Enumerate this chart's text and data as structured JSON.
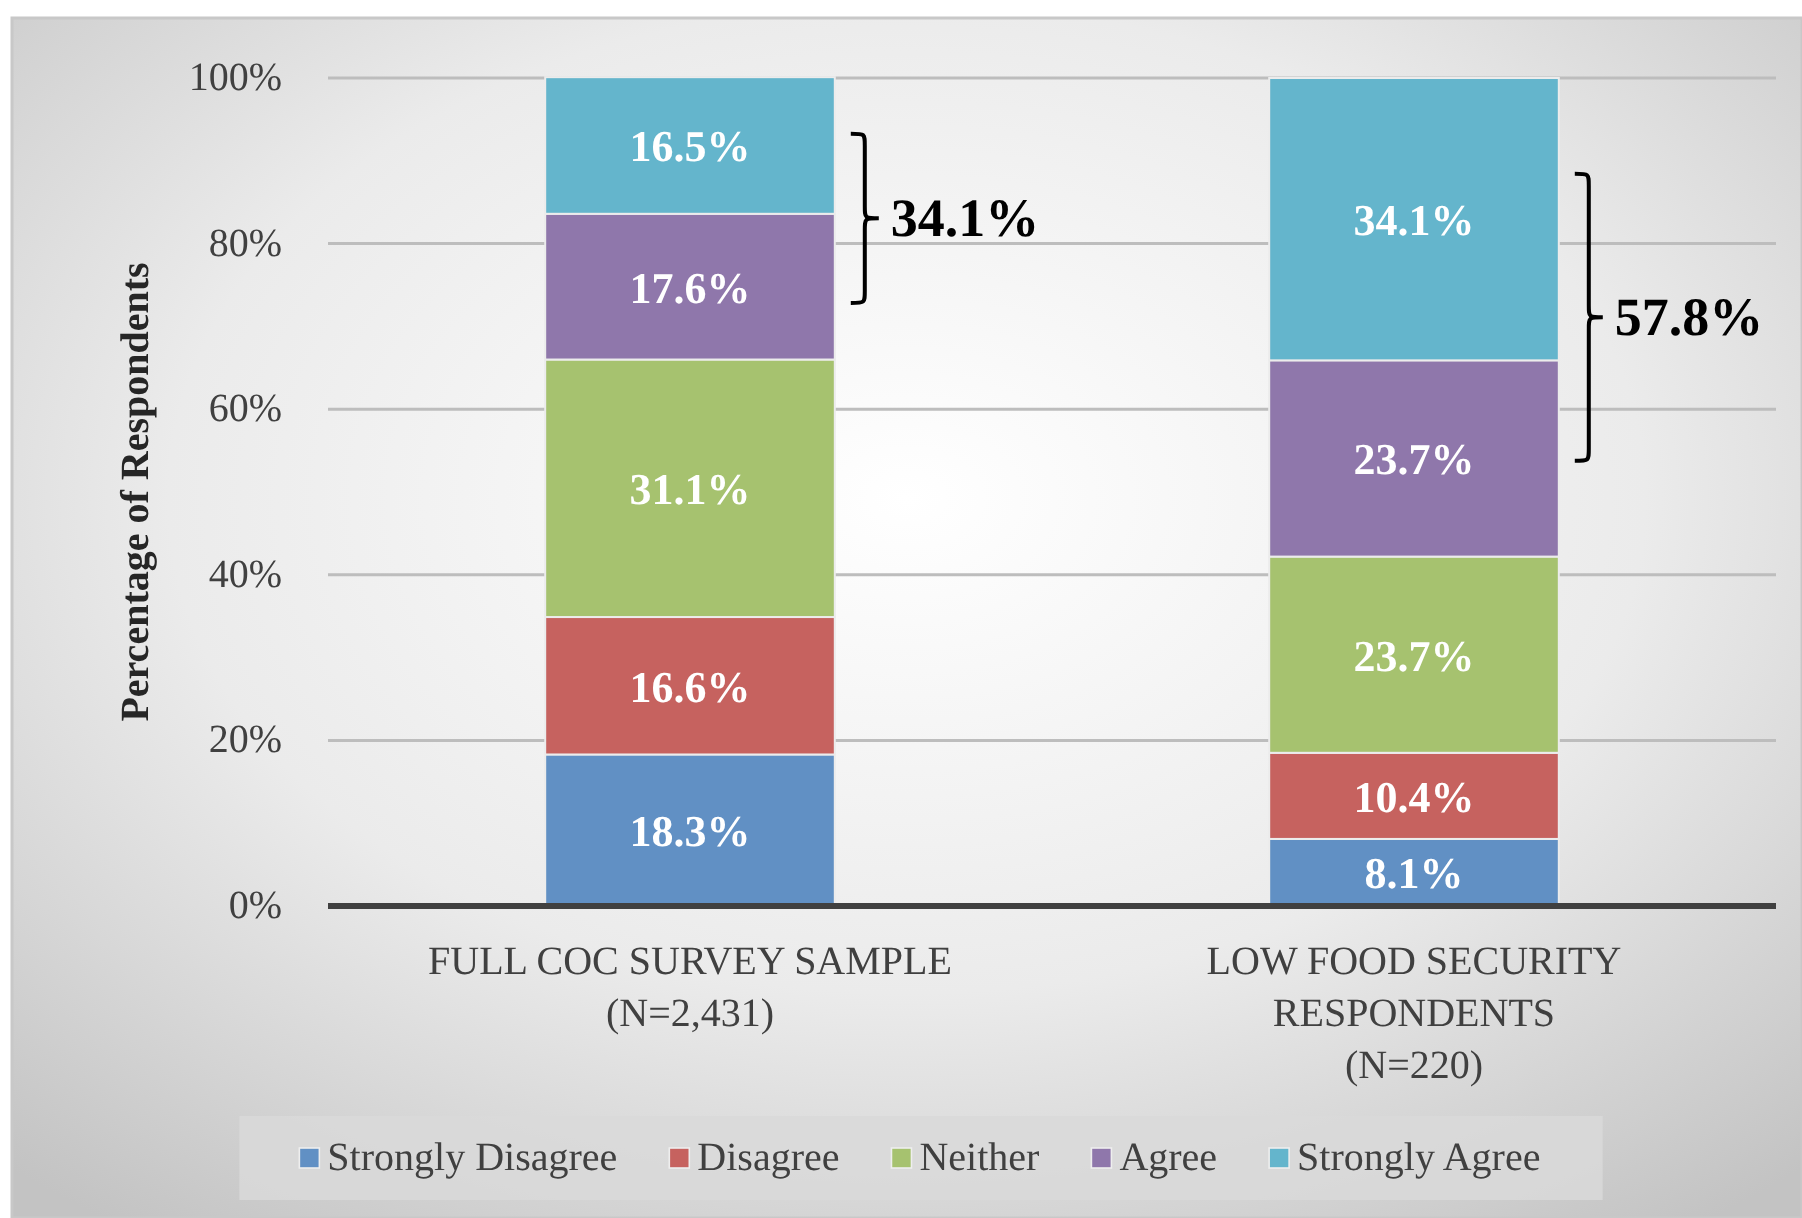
{
  "chart_data": {
    "type": "bar",
    "stacked": true,
    "categories": [
      "FULL COC SURVEY SAMPLE\n(N=2,431)",
      "LOW FOOD SECURITY\nRESPONDENTS\n(N=220)"
    ],
    "ylabel": "Percentage of Respondents",
    "ylim": [
      0,
      100
    ],
    "yticks": [
      {
        "value": 0,
        "label": "0%"
      },
      {
        "value": 20,
        "label": "20%"
      },
      {
        "value": 40,
        "label": "40%"
      },
      {
        "value": 60,
        "label": "60%"
      },
      {
        "value": 80,
        "label": "80%"
      },
      {
        "value": 100,
        "label": "100%"
      }
    ],
    "grid": "y",
    "legend": "bottom",
    "series": [
      {
        "name": "Strongly Disagree",
        "color": "#6190c4",
        "values": [
          18.3,
          8.1
        ],
        "value_labels": [
          "18.3%",
          "8.1%"
        ]
      },
      {
        "name": "Disagree",
        "color": "#c6625f",
        "values": [
          16.6,
          10.4
        ],
        "value_labels": [
          "16.6%",
          "10.4%"
        ]
      },
      {
        "name": "Neither",
        "color": "#a6c26f",
        "values": [
          31.1,
          23.7
        ],
        "value_labels": [
          "31.1%",
          "23.7%"
        ]
      },
      {
        "name": "Agree",
        "color": "#8f77ab",
        "values": [
          17.6,
          23.7
        ],
        "value_labels": [
          "17.6%",
          "23.7%"
        ]
      },
      {
        "name": "Strongly Agree",
        "color": "#64b5cc",
        "values": [
          16.5,
          34.1
        ],
        "value_labels": [
          "16.5%",
          "34.1%"
        ]
      }
    ],
    "annotations": [
      "34.1%",
      "57.8%"
    ]
  }
}
